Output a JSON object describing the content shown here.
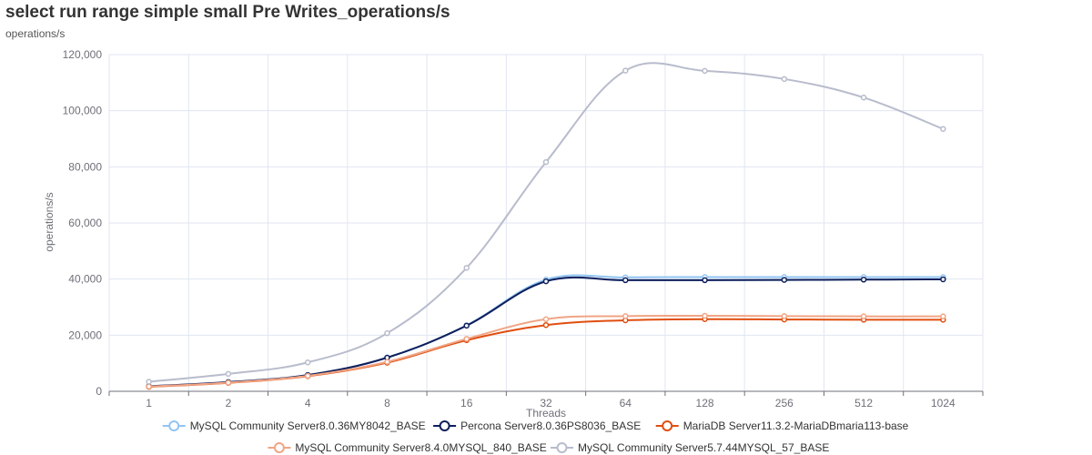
{
  "title": "select run range simple small Pre Writes_operations/s",
  "unit_label": "operations/s",
  "chart_data": {
    "type": "line",
    "title": "select run range simple small Pre Writes_operations/s",
    "xlabel": "Threads",
    "ylabel": "operations/s",
    "categories": [
      "1",
      "2",
      "4",
      "8",
      "16",
      "32",
      "64",
      "128",
      "256",
      "512",
      "1024"
    ],
    "ylim": [
      0,
      120000
    ],
    "yticks": [
      "0",
      "20,000",
      "40,000",
      "60,000",
      "80,000",
      "100,000",
      "120,000"
    ],
    "grid": true,
    "legend_position": "bottom",
    "series": [
      {
        "name": "MySQL Community Server8.0.36MY8042_BASE",
        "color": "#91c4f2",
        "values": [
          1800,
          3300,
          5800,
          12000,
          23500,
          39800,
          40600,
          40700,
          40700,
          40700,
          40700
        ]
      },
      {
        "name": "Percona Server8.0.36PS8036_BASE",
        "color": "#0d1f5c",
        "values": [
          1800,
          3300,
          5800,
          12000,
          23400,
          39200,
          39600,
          39600,
          39700,
          39800,
          39900
        ]
      },
      {
        "name": "MariaDB Server11.3.2-MariaDBmaria113-base",
        "color": "#e04e0f",
        "values": [
          1600,
          3000,
          5400,
          10200,
          18200,
          23600,
          25300,
          25700,
          25600,
          25500,
          25500
        ]
      },
      {
        "name": "MySQL Community Server8.4.0MYSQL_840_BASE",
        "color": "#f0a585",
        "values": [
          1700,
          3100,
          5500,
          10500,
          18700,
          25700,
          26800,
          26900,
          26800,
          26700,
          26700
        ]
      },
      {
        "name": "MySQL Community Server5.7.44MYSQL_57_BASE",
        "color": "#b8bccc",
        "values": [
          3400,
          6200,
          10300,
          20700,
          44000,
          81700,
          114300,
          114200,
          111300,
          104700,
          93500
        ]
      }
    ]
  }
}
